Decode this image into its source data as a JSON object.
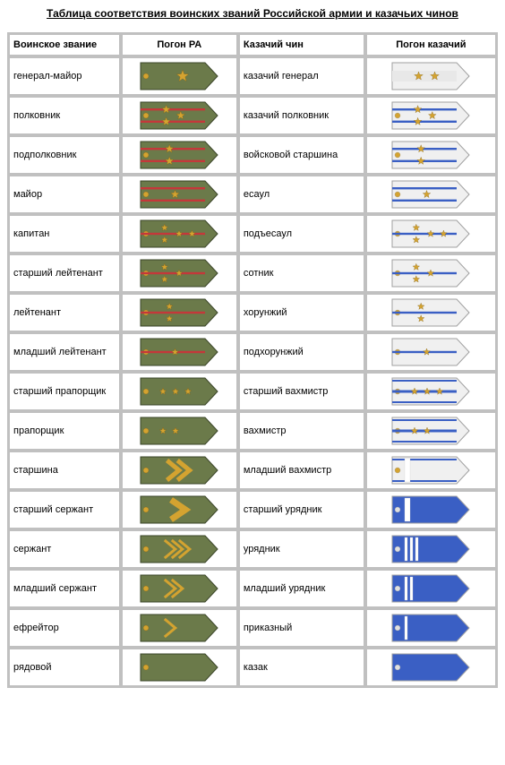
{
  "title": "Таблица соответствия воинских званий Российской армии и казачьих чинов",
  "headers": {
    "rank": "Воинское звание",
    "epaulet_ra": "Погон РА",
    "cossack_rank": "Казачий чин",
    "epaulet_cossack": "Погон казачий"
  },
  "colors": {
    "army_bg": "#5a6b3e",
    "army_field": "#6b7a4a",
    "army_stripe": "#c4383a",
    "army_star": "#d4a330",
    "army_chevron": "#d4a330",
    "army_border": "#3a4428",
    "cossack_bg": "#f0f0f0",
    "cossack_stripe_blue": "#3a5fc4",
    "cossack_fill_blue": "#3a5fc4",
    "cossack_star": "#d4a330",
    "cossack_border": "#a0a0a0",
    "cossack_white_stripe": "#ffffff"
  },
  "rows": [
    {
      "rank": "генерал-майор",
      "cossack": "казачий генерал",
      "ra": {
        "type": "general",
        "stars": 1
      },
      "cep": {
        "type": "general",
        "stars": 2
      }
    },
    {
      "rank": "полковник",
      "cossack": "казачий полковник",
      "ra": {
        "type": "senior_officer",
        "stars": 3,
        "gaps": 2
      },
      "cep": {
        "type": "officer_senior",
        "stars": 3,
        "gaps": 2
      }
    },
    {
      "rank": "подполковник",
      "cossack": "войсковой старшина",
      "ra": {
        "type": "senior_officer",
        "stars": 2,
        "gaps": 2
      },
      "cep": {
        "type": "officer_senior",
        "stars": 2,
        "gaps": 2
      }
    },
    {
      "rank": "майор",
      "cossack": "есаул",
      "ra": {
        "type": "senior_officer",
        "stars": 1,
        "gaps": 2
      },
      "cep": {
        "type": "officer_senior",
        "stars": 1,
        "gaps": 2
      }
    },
    {
      "rank": "капитан",
      "cossack": "подъесаул",
      "ra": {
        "type": "junior_officer",
        "stars": 4,
        "gaps": 1
      },
      "cep": {
        "type": "officer_junior",
        "stars": 4,
        "gaps": 1
      }
    },
    {
      "rank": "старший лейтенант",
      "cossack": "сотник",
      "ra": {
        "type": "junior_officer",
        "stars": 3,
        "gaps": 1
      },
      "cep": {
        "type": "officer_junior",
        "stars": 3,
        "gaps": 1
      }
    },
    {
      "rank": "лейтенант",
      "cossack": "хорунжий",
      "ra": {
        "type": "junior_officer",
        "stars": 2,
        "gaps": 1
      },
      "cep": {
        "type": "officer_junior",
        "stars": 2,
        "gaps": 1
      }
    },
    {
      "rank": "младший лейтенант",
      "cossack": "подхорунжий",
      "ra": {
        "type": "junior_officer",
        "stars": 1,
        "gaps": 1
      },
      "cep": {
        "type": "officer_junior",
        "stars": 1,
        "gaps": 1
      }
    },
    {
      "rank": "старший прапорщик",
      "cossack": "старший вахмистр",
      "ra": {
        "type": "warrant",
        "stars": 3
      },
      "cep": {
        "type": "warrant",
        "stars": 3
      }
    },
    {
      "rank": "прапорщик",
      "cossack": "вахмистр",
      "ra": {
        "type": "warrant",
        "stars": 2
      },
      "cep": {
        "type": "warrant",
        "stars": 2
      }
    },
    {
      "rank": "старшина",
      "cossack": "младший вахмистр",
      "ra": {
        "type": "starshina"
      },
      "cep": {
        "type": "nco",
        "wstripes": 1,
        "wide": true
      }
    },
    {
      "rank": "старший сержант",
      "cossack": "старший урядник",
      "ra": {
        "type": "sergeant_wide"
      },
      "cep": {
        "type": "nco",
        "wstripes": 1,
        "wide": true,
        "bluefill": true
      }
    },
    {
      "rank": "сержант",
      "cossack": "урядник",
      "ra": {
        "type": "chevrons",
        "count": 3
      },
      "cep": {
        "type": "nco",
        "wstripes": 3,
        "bluefill": true
      }
    },
    {
      "rank": "младший сержант",
      "cossack": "младший урядник",
      "ra": {
        "type": "chevrons",
        "count": 2
      },
      "cep": {
        "type": "nco",
        "wstripes": 2,
        "bluefill": true
      }
    },
    {
      "rank": "ефрейтор",
      "cossack": "приказный",
      "ra": {
        "type": "chevrons",
        "count": 1
      },
      "cep": {
        "type": "nco",
        "wstripes": 1,
        "bluefill": true
      }
    },
    {
      "rank": "рядовой",
      "cossack": "казак",
      "ra": {
        "type": "plain"
      },
      "cep": {
        "type": "nco",
        "wstripes": 0,
        "bluefill": true
      }
    }
  ],
  "epaulet_size": {
    "w": 90,
    "h": 34
  }
}
